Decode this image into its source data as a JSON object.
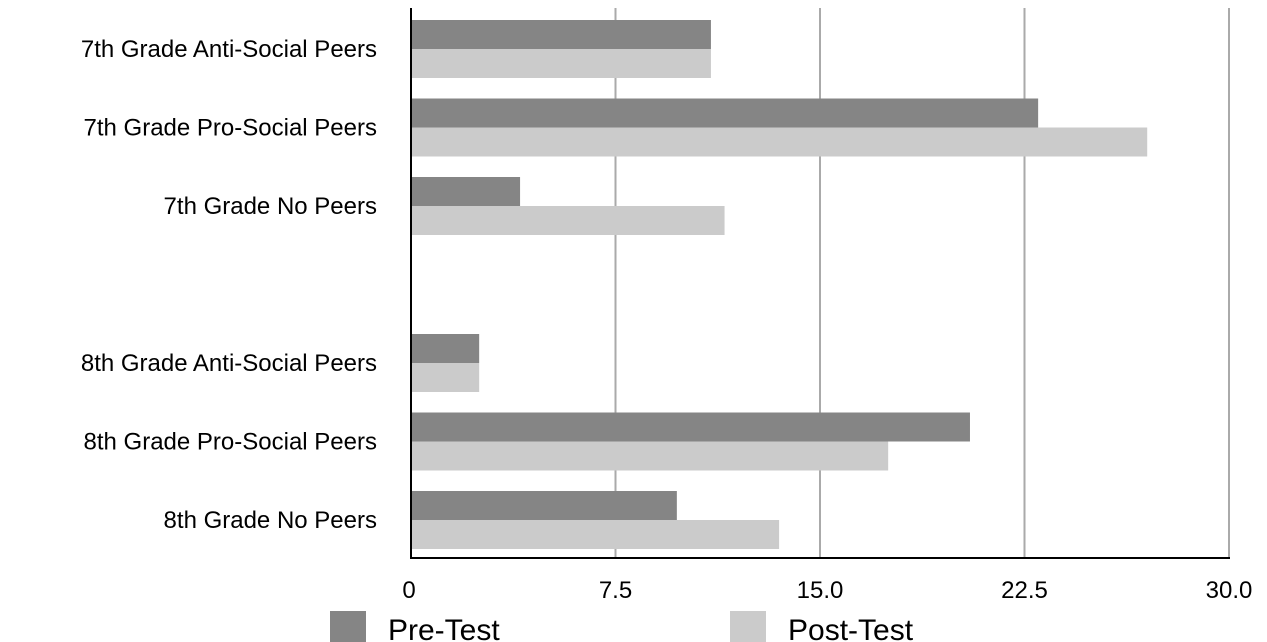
{
  "chart_data": {
    "type": "bar",
    "orientation": "horizontal",
    "title": "",
    "xlabel": "",
    "ylabel": "",
    "categories": [
      "7th Grade Anti-Social Peers",
      "7th Grade Pro-Social Peers",
      "7th Grade No Peers",
      "",
      "8th Grade Anti-Social Peers",
      "8th Grade Pro-Social Peers",
      "8th Grade No Peers"
    ],
    "series": [
      {
        "name": "Pre-Test",
        "color": "#858585",
        "values": [
          11.0,
          23.0,
          4.0,
          null,
          2.5,
          20.5,
          9.75
        ]
      },
      {
        "name": "Post-Test",
        "color": "#cbcbcb",
        "values": [
          11.0,
          27.0,
          11.5,
          null,
          2.5,
          17.5,
          13.5
        ]
      }
    ],
    "xlim": [
      0,
      30
    ],
    "x_ticks": [
      "0",
      "7.5",
      "15.0",
      "22.5",
      "30.0"
    ],
    "x_tick_values": [
      0,
      7.5,
      15,
      22.5,
      30
    ],
    "grid": true,
    "grid_color": "#aaaaaa",
    "legend_position": "bottom"
  }
}
